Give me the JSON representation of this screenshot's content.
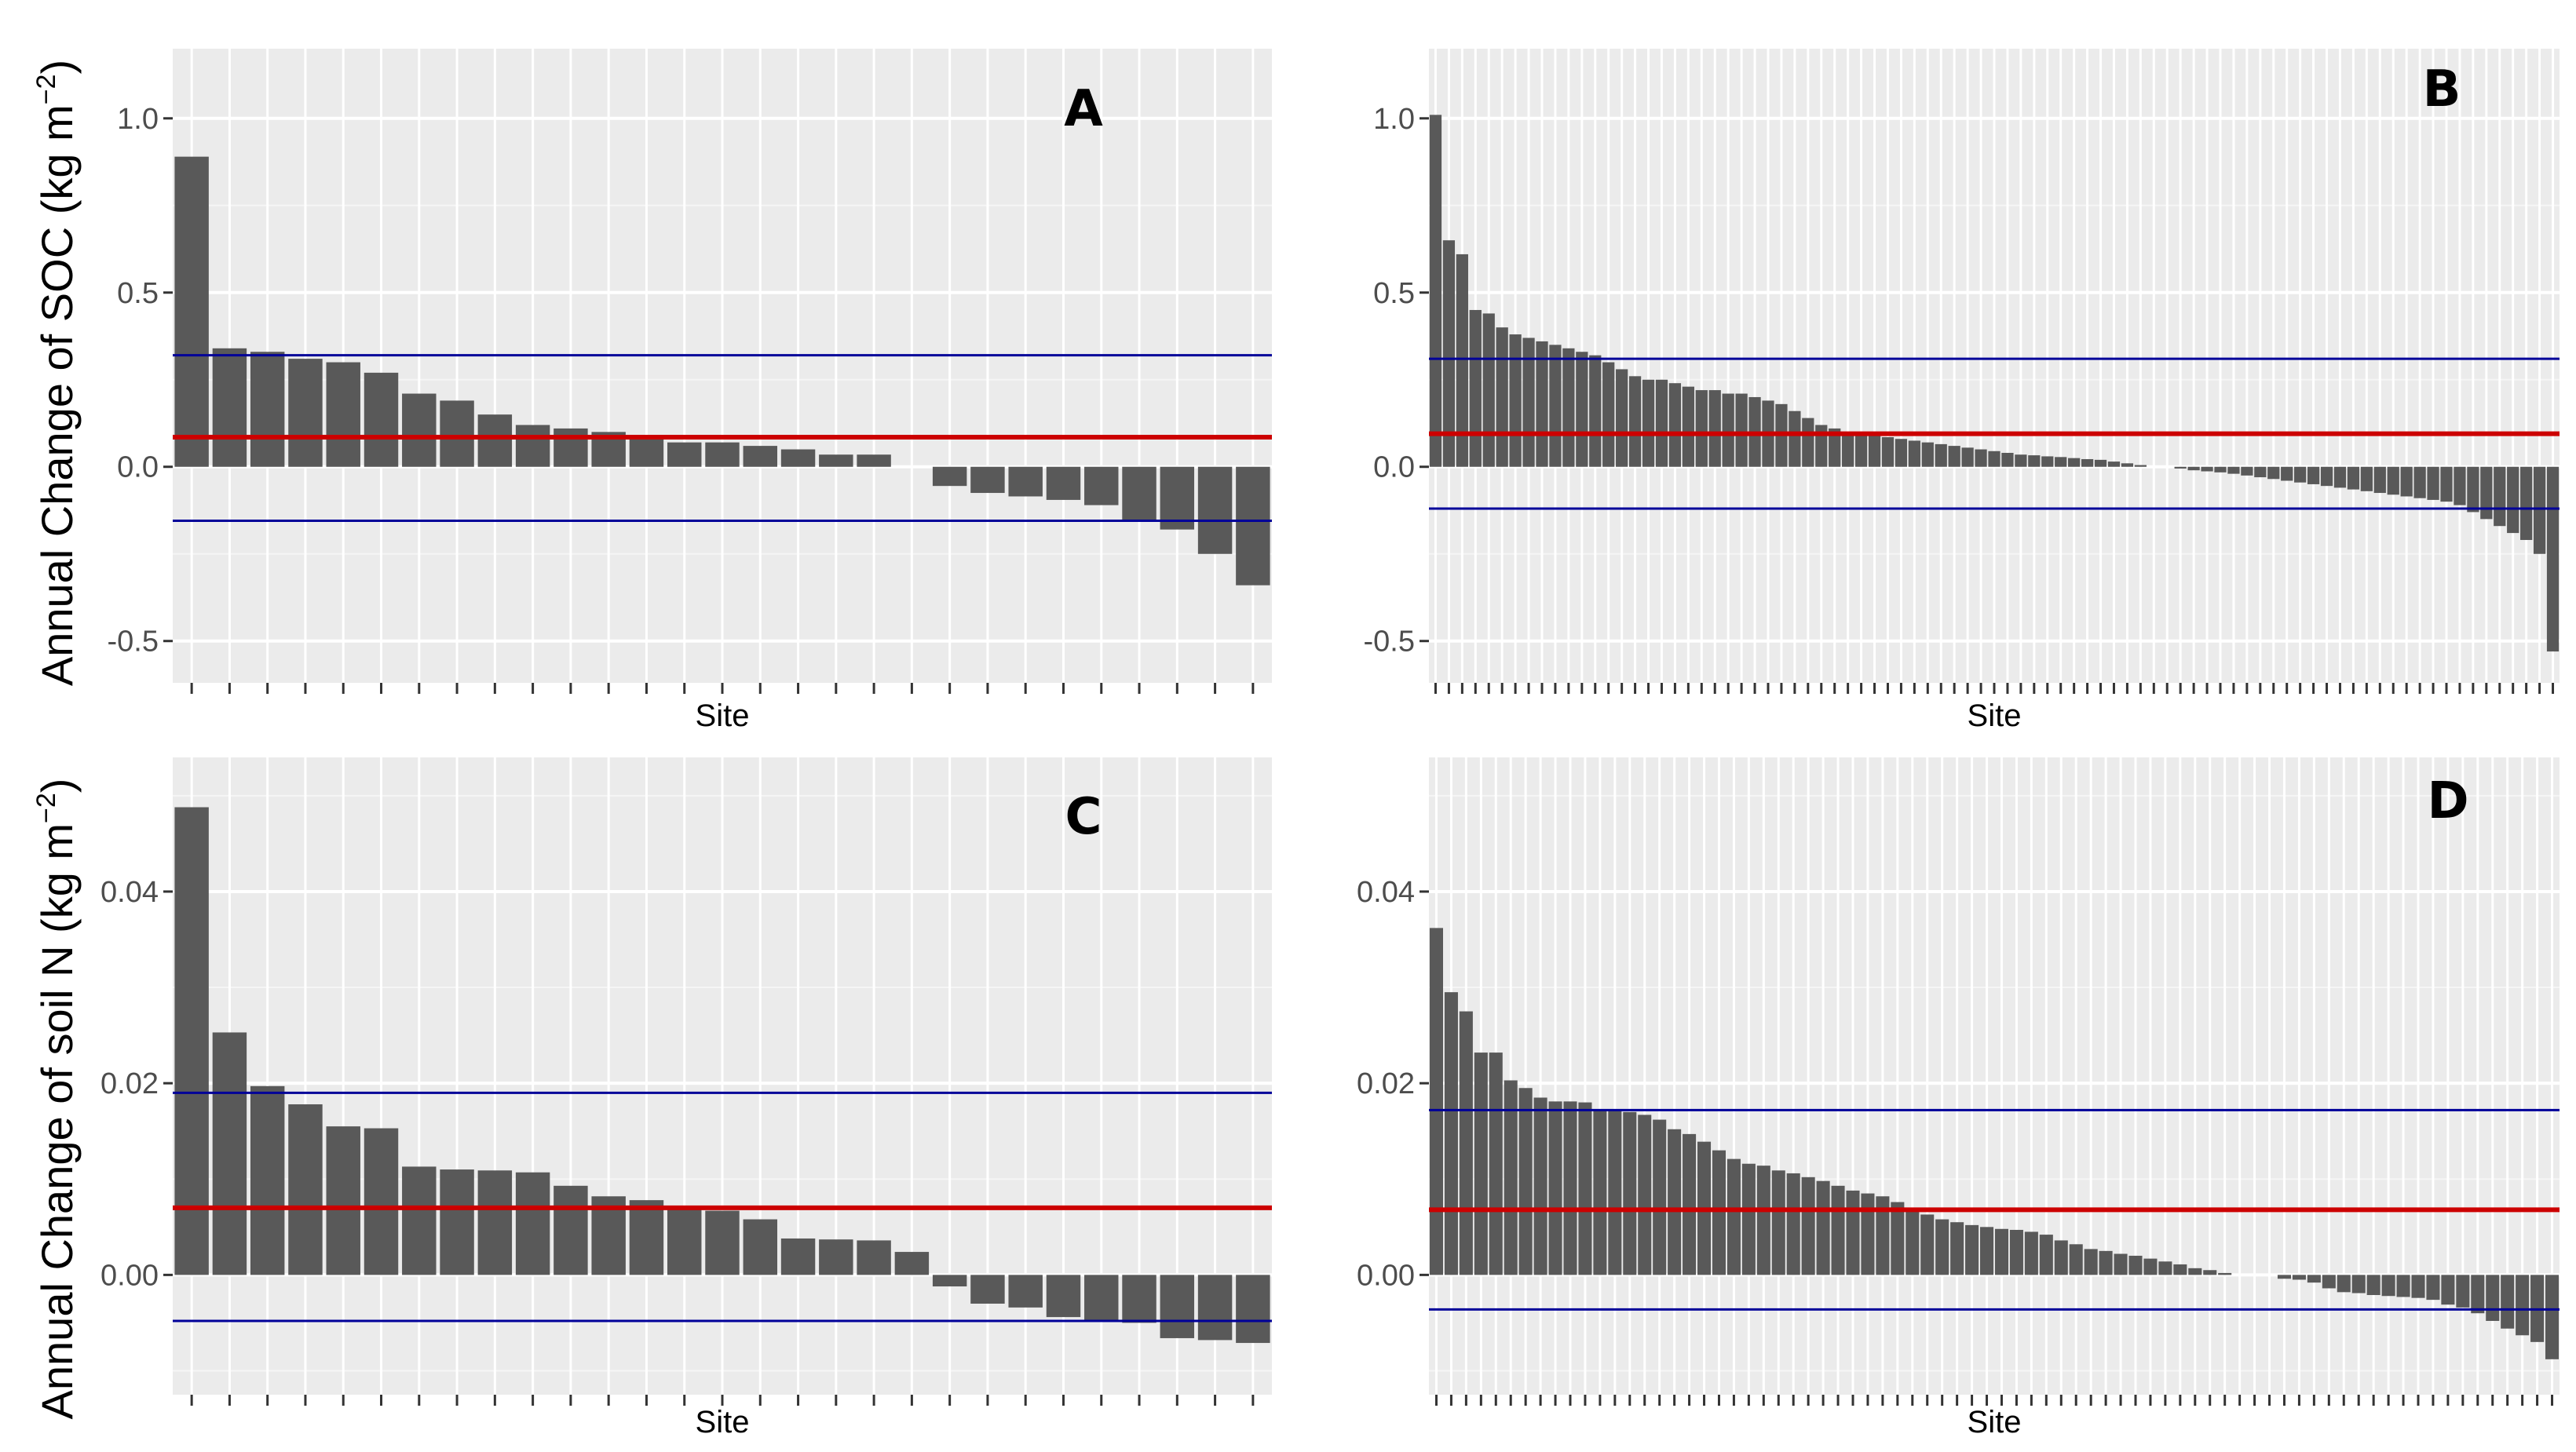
{
  "figure": {
    "shared_ylabels": {
      "top": {
        "text": "Annual Change of SOC (kg m",
        "sup": "−2",
        "tail": ")"
      },
      "bottom": {
        "text": "Annual Change of soil N (kg m",
        "sup": "−2",
        "tail": ")"
      }
    }
  },
  "chart_data": [
    {
      "id": "A",
      "label": "A",
      "type": "bar",
      "xlabel": "Site",
      "ylim": [
        -0.62,
        1.2
      ],
      "yticks": [
        1.0,
        0.5,
        0.0,
        -0.5
      ],
      "yticklabels": [
        "1.0",
        "0.5",
        "0.0",
        "-0.5"
      ],
      "values": [
        0.89,
        0.34,
        0.33,
        0.31,
        0.3,
        0.27,
        0.21,
        0.19,
        0.15,
        0.12,
        0.11,
        0.1,
        0.08,
        0.07,
        0.07,
        0.06,
        0.05,
        0.035,
        0.035,
        0,
        -0.055,
        -0.075,
        -0.085,
        -0.095,
        -0.11,
        -0.155,
        -0.18,
        -0.25,
        -0.34
      ],
      "mean": 0.085,
      "mean_color": "#cc0000",
      "bounds": [
        0.32,
        -0.155
      ],
      "bound_color": "#000099"
    },
    {
      "id": "B",
      "label": "B",
      "type": "bar",
      "xlabel": "Site",
      "ylim": [
        -0.62,
        1.2
      ],
      "yticks": [
        1.0,
        0.5,
        0.0,
        -0.5
      ],
      "yticklabels": [
        "1.0",
        "0.5",
        "0.0",
        "-0.5"
      ],
      "values": [
        1.01,
        0.65,
        0.61,
        0.45,
        0.44,
        0.4,
        0.38,
        0.37,
        0.36,
        0.35,
        0.34,
        0.33,
        0.32,
        0.3,
        0.28,
        0.26,
        0.25,
        0.25,
        0.24,
        0.23,
        0.22,
        0.22,
        0.21,
        0.21,
        0.2,
        0.19,
        0.18,
        0.16,
        0.14,
        0.12,
        0.11,
        0.1,
        0.095,
        0.09,
        0.085,
        0.08,
        0.075,
        0.07,
        0.065,
        0.06,
        0.055,
        0.05,
        0.045,
        0.04,
        0.035,
        0.033,
        0.03,
        0.028,
        0.025,
        0.022,
        0.02,
        0.015,
        0.01,
        0.005,
        0,
        0,
        -0.005,
        -0.01,
        -0.013,
        -0.016,
        -0.02,
        -0.025,
        -0.03,
        -0.035,
        -0.04,
        -0.045,
        -0.05,
        -0.055,
        -0.06,
        -0.065,
        -0.07,
        -0.075,
        -0.08,
        -0.085,
        -0.09,
        -0.095,
        -0.1,
        -0.11,
        -0.13,
        -0.15,
        -0.17,
        -0.19,
        -0.21,
        -0.25,
        -0.53
      ],
      "mean": 0.095,
      "mean_color": "#cc0000",
      "bounds": [
        0.31,
        -0.12
      ],
      "bound_color": "#000099"
    },
    {
      "id": "C",
      "label": "C",
      "type": "bar",
      "xlabel": "Site",
      "ylim": [
        -0.0125,
        0.054
      ],
      "yticks": [
        0.04,
        0.02,
        0.0
      ],
      "yticklabels": [
        "0.04",
        "0.02",
        "0.00"
      ],
      "values": [
        0.0488,
        0.0253,
        0.0197,
        0.0178,
        0.0155,
        0.0153,
        0.0113,
        0.011,
        0.0109,
        0.0107,
        0.0093,
        0.0082,
        0.0078,
        0.007,
        0.0067,
        0.0058,
        0.0038,
        0.0037,
        0.0036,
        0.0024,
        -0.0012,
        -0.003,
        -0.0034,
        -0.0044,
        -0.0048,
        -0.005,
        -0.0066,
        -0.0068,
        -0.0071
      ],
      "mean": 0.007,
      "mean_color": "#cc0000",
      "bounds": [
        0.019,
        -0.0048
      ],
      "bound_color": "#000099"
    },
    {
      "id": "D",
      "label": "D",
      "type": "bar",
      "xlabel": "Site",
      "ylim": [
        -0.0125,
        0.054
      ],
      "yticks": [
        0.04,
        0.02,
        0.0
      ],
      "yticklabels": [
        "0.04",
        "0.02",
        "0.00"
      ],
      "values": [
        0.0362,
        0.0295,
        0.0275,
        0.0232,
        0.0232,
        0.0203,
        0.0195,
        0.0185,
        0.0181,
        0.0181,
        0.018,
        0.0173,
        0.0171,
        0.017,
        0.0167,
        0.0162,
        0.0152,
        0.0147,
        0.0139,
        0.013,
        0.0121,
        0.0116,
        0.0114,
        0.0109,
        0.0106,
        0.0102,
        0.0098,
        0.0093,
        0.0088,
        0.0085,
        0.0082,
        0.0076,
        0.0068,
        0.0063,
        0.0058,
        0.0055,
        0.0052,
        0.005,
        0.0048,
        0.0047,
        0.0045,
        0.0042,
        0.0036,
        0.0032,
        0.0027,
        0.0025,
        0.0022,
        0.002,
        0.0017,
        0.0014,
        0.0011,
        0.0007,
        0.0005,
        0.0002,
        0,
        0,
        0,
        -0.0004,
        -0.0005,
        -0.0008,
        -0.0014,
        -0.0018,
        -0.0019,
        -0.0021,
        -0.0022,
        -0.0023,
        -0.0024,
        -0.0026,
        -0.0031,
        -0.0034,
        -0.004,
        -0.0048,
        -0.0056,
        -0.0063,
        -0.007,
        -0.0088
      ],
      "mean": 0.0068,
      "mean_color": "#cc0000",
      "bounds": [
        0.0172,
        -0.0036
      ],
      "bound_color": "#000099"
    }
  ]
}
